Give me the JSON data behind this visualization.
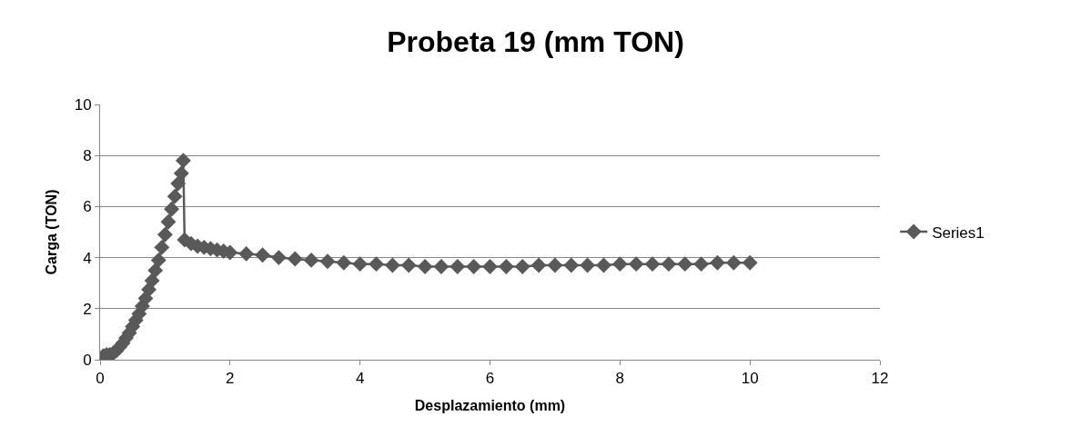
{
  "chart_data": {
    "type": "line",
    "title": "Probeta 19 (mm TON)",
    "xlabel": "Desplazamiento (mm)",
    "ylabel": "Carga (TON)",
    "x": [
      0,
      0.05,
      0.1,
      0.15,
      0.2,
      0.25,
      0.3,
      0.35,
      0.4,
      0.45,
      0.5,
      0.55,
      0.6,
      0.65,
      0.7,
      0.75,
      0.8,
      0.85,
      0.9,
      0.95,
      1.0,
      1.05,
      1.1,
      1.15,
      1.2,
      1.25,
      1.28,
      1.3,
      1.4,
      1.5,
      1.6,
      1.7,
      1.8,
      1.9,
      2.0,
      2.25,
      2.5,
      2.75,
      3.0,
      3.25,
      3.5,
      3.75,
      4.0,
      4.25,
      4.5,
      4.75,
      5.0,
      5.25,
      5.5,
      5.75,
      6.0,
      6.25,
      6.5,
      6.75,
      7.0,
      7.25,
      7.5,
      7.75,
      8.0,
      8.25,
      8.5,
      8.75,
      9.0,
      9.25,
      9.5,
      9.75,
      10.0
    ],
    "series": [
      {
        "name": "Series1",
        "color": "#595959",
        "values": [
          0,
          0.15,
          0.2,
          0.2,
          0.25,
          0.35,
          0.5,
          0.65,
          0.85,
          1.05,
          1.3,
          1.55,
          1.8,
          2.1,
          2.4,
          2.75,
          3.1,
          3.5,
          3.9,
          4.4,
          4.9,
          5.4,
          5.9,
          6.4,
          6.9,
          7.3,
          7.8,
          4.7,
          4.55,
          4.45,
          4.4,
          4.35,
          4.3,
          4.25,
          4.2,
          4.15,
          4.1,
          4.0,
          3.95,
          3.9,
          3.85,
          3.8,
          3.75,
          3.75,
          3.7,
          3.7,
          3.65,
          3.65,
          3.65,
          3.65,
          3.65,
          3.65,
          3.65,
          3.7,
          3.7,
          3.7,
          3.7,
          3.7,
          3.75,
          3.75,
          3.75,
          3.75,
          3.75,
          3.75,
          3.8,
          3.8,
          3.8
        ]
      }
    ],
    "xlim": [
      0,
      12
    ],
    "xticks": [
      0,
      2,
      4,
      6,
      8,
      10,
      12
    ],
    "ylim": [
      0,
      10
    ],
    "yticks": [
      0,
      2,
      4,
      6,
      8,
      10
    ],
    "grid": "y",
    "legend": "right",
    "marker": "diamond",
    "line_style": "solid"
  }
}
